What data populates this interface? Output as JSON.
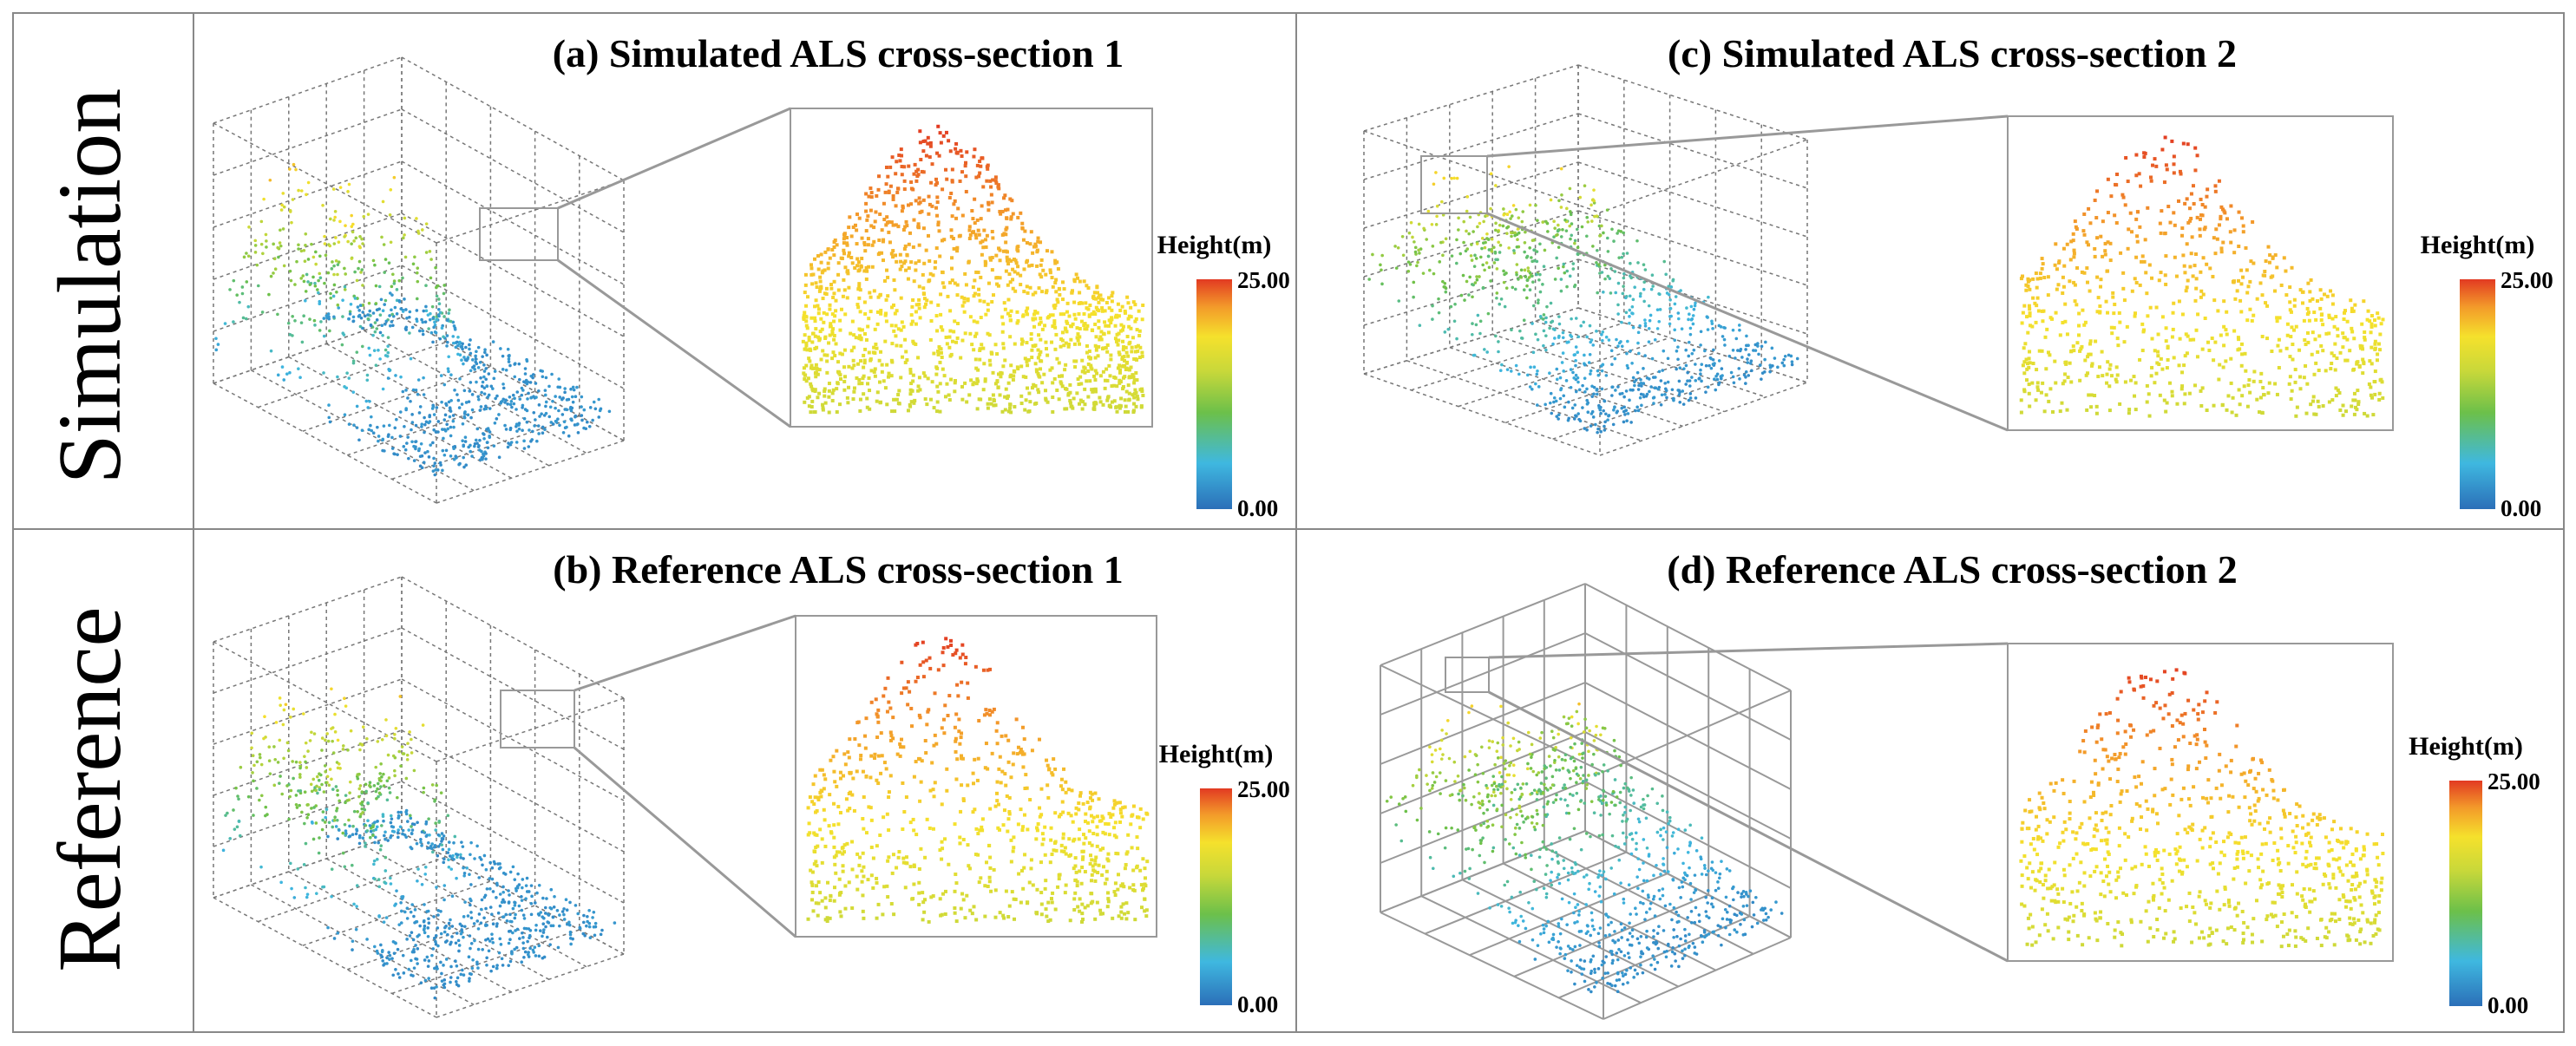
{
  "row_labels": [
    "Simulation",
    "Reference"
  ],
  "panels": [
    {
      "title": "(a) Simulated ALS cross-section 1",
      "colorbar": {
        "label": "Height(m)",
        "max": "25.00",
        "min": "0.00"
      }
    },
    {
      "title": "(c) Simulated ALS cross-section 2",
      "colorbar": {
        "label": "Height(m)",
        "max": "25.00",
        "min": "0.00"
      }
    },
    {
      "title": "(b) Reference ALS cross-section 1",
      "colorbar": {
        "label": "Height(m)",
        "max": "25.00",
        "min": "0.00"
      }
    },
    {
      "title": "(d) Reference ALS cross-section 2",
      "colorbar": {
        "label": "Height(m)",
        "max": "25.00",
        "min": "0.00"
      }
    }
  ]
}
